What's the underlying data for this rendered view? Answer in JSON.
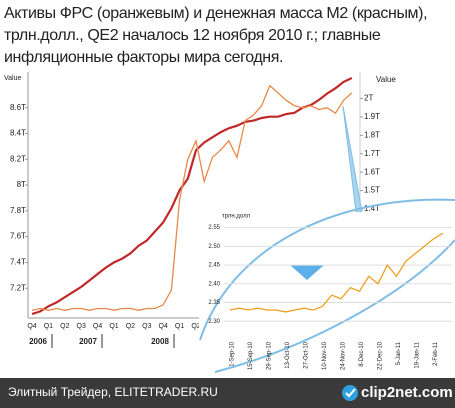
{
  "chart_data": [
    {
      "type": "line",
      "title": [
        "Активы ФРС (оранжевым) и денежная масса M2 (красным),",
        "трлн.долл., QE2 началось 12 ноября 2010 г.; главные",
        "инфляционные факторы мира сегодня."
      ],
      "y_label": "Value",
      "y2_label": "Value",
      "categories": [
        "Q4",
        null,
        "Q1",
        null,
        "Q2",
        null,
        "Q3",
        null,
        "Q4",
        null,
        "Q1",
        null,
        "Q2",
        null,
        "Q3",
        null,
        "Q4",
        null,
        "Q1",
        null,
        "Q2",
        null,
        null,
        null,
        null,
        null,
        null,
        null,
        null,
        null,
        null,
        null,
        null,
        null,
        null,
        null,
        null,
        null,
        null,
        null
      ],
      "year_labels": [
        "2006",
        "2007",
        "2008"
      ],
      "series": [
        {
          "color": "#c0282a",
          "values": [
            7.0,
            7.02,
            7.06,
            7.09,
            7.13,
            7.17,
            7.21,
            7.26,
            7.31,
            7.36,
            7.4,
            7.43,
            7.47,
            7.53,
            7.57,
            7.64,
            7.71,
            7.82,
            7.96,
            8.05,
            8.27,
            8.33,
            8.37,
            8.41,
            8.44,
            8.46,
            8.49,
            8.5,
            8.52,
            8.53,
            8.53,
            8.55,
            8.56,
            8.6,
            8.62,
            8.66,
            8.71,
            8.75,
            8.8,
            8.83
          ]
        },
        {
          "color": "#e8894a",
          "axis": "y2",
          "values": [
            0.85,
            0.86,
            0.85,
            0.86,
            0.85,
            0.86,
            0.86,
            0.85,
            0.86,
            0.86,
            0.85,
            0.86,
            0.86,
            0.85,
            0.86,
            0.86,
            0.88,
            0.96,
            1.45,
            1.67,
            1.77,
            1.55,
            1.68,
            1.72,
            1.77,
            1.68,
            1.88,
            1.91,
            1.96,
            2.07,
            2.03,
            1.99,
            1.96,
            1.95,
            1.96,
            1.94,
            1.95,
            1.92,
            1.99,
            2.03
          ]
        }
      ],
      "ylim": [
        7.0,
        8.9
      ],
      "yticks": [
        {
          "value": 7.2,
          "label": "7.2T"
        },
        {
          "value": 7.4,
          "label": "7.4T"
        },
        {
          "value": 7.6,
          "label": "7.6T"
        },
        {
          "value": 7.8,
          "label": "7.8T"
        },
        {
          "value": 8,
          "label": "8T"
        },
        {
          "value": 8.2,
          "label": "8.2T"
        },
        {
          "value": 8.4,
          "label": "8.4T"
        },
        {
          "value": 8.6,
          "label": "8.6T"
        }
      ],
      "y2lim": [
        0.83,
        2.16
      ],
      "y2ticks": [
        {
          "value": 1.4,
          "label": "1.4T"
        },
        {
          "value": 1.5,
          "label": "1.5T"
        },
        {
          "value": 1.6,
          "label": "1.6T"
        },
        {
          "value": 1.7,
          "label": "1.7T"
        },
        {
          "value": 1.8,
          "label": "1.8T"
        },
        {
          "value": 1.9,
          "label": "1.9T"
        },
        {
          "value": 2,
          "label": "2T"
        }
      ],
      "grid": false
    },
    {
      "type": "line",
      "y_label": "трлн.долл",
      "categories": [
        "1-Sep-10",
        null,
        "15-Sep-10",
        null,
        "29-Sep-10",
        null,
        "13-Oct-10",
        null,
        "27-Oct-10",
        null,
        "10-Nov-10",
        null,
        "24-Nov-10",
        null,
        "8-Dec-10",
        null,
        "22-Dec-10",
        null,
        "5-Jan-11",
        null,
        "19-Jan-11",
        null,
        "2-Feb-11",
        null
      ],
      "series": [
        {
          "color": "#f0a020",
          "values": [
            2.33,
            2.335,
            2.33,
            2.335,
            2.33,
            2.33,
            2.325,
            2.33,
            2.335,
            2.33,
            2.34,
            2.37,
            2.36,
            2.39,
            2.38,
            2.42,
            2.4,
            2.45,
            2.42,
            2.46,
            2.48,
            2.5,
            2.52,
            2.535
          ]
        }
      ],
      "ylim": [
        2.25,
        2.565
      ],
      "yticks": [
        {
          "value": 2.3,
          "label": "2.30"
        },
        2.35,
        {
          "value": 2.4,
          "label": "2.40"
        },
        2.45,
        {
          "value": 2.5,
          "label": "2.50"
        },
        2.55
      ],
      "grid": true
    }
  ],
  "footer": {
    "source": "Элитный Трейдер, ELITETRADER.RU",
    "logo": "clip2net.com"
  }
}
